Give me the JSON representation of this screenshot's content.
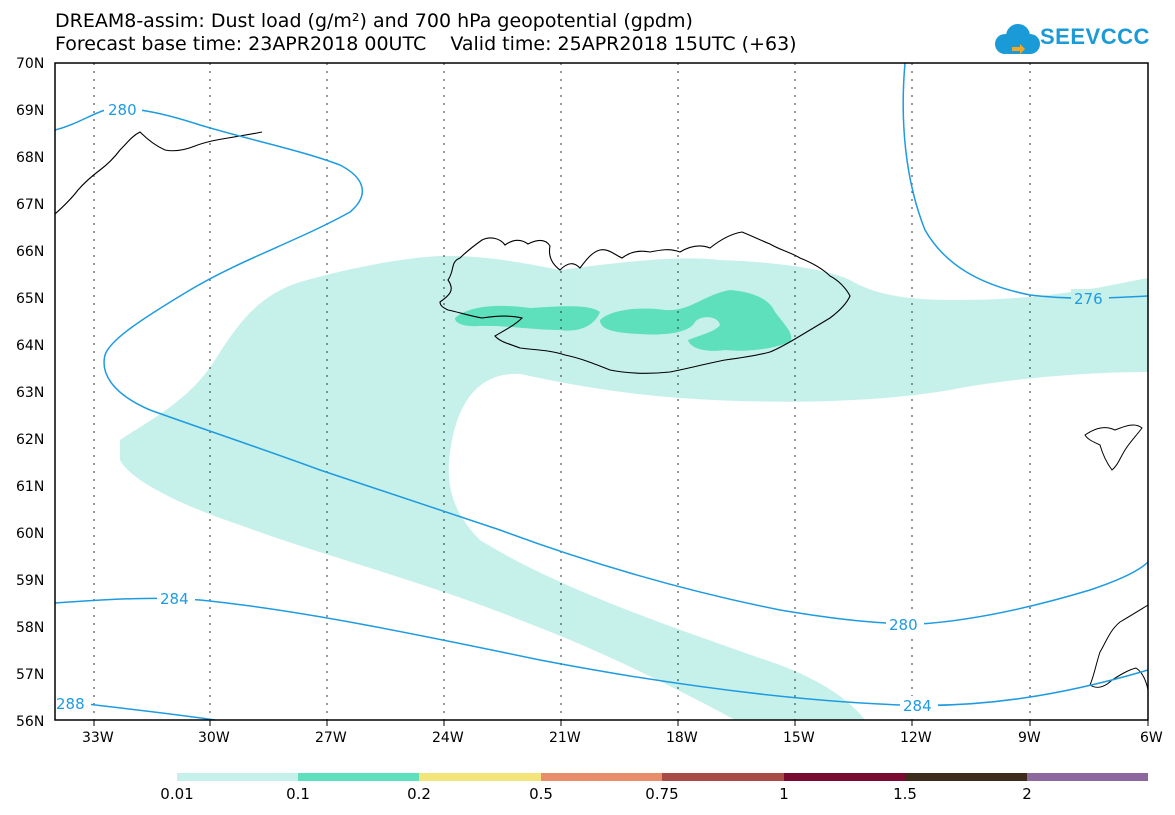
{
  "title": {
    "line1": "DREAM8-assim: Dust load (g/m²) and 700 hPa geopotential (gpdm)",
    "line2": "Forecast base time: 23APR2018 00UTC    Valid time: 25APR2018 15UTC (+63)"
  },
  "logo": {
    "text": "SEEVCCC",
    "icon": "cloud-icon",
    "color": "#1a9ad6"
  },
  "map": {
    "lon_labels": [
      "33W",
      "30W",
      "27W",
      "24W",
      "21W",
      "18W",
      "15W",
      "12W",
      "9W",
      "6W"
    ],
    "lat_labels": [
      "70N",
      "69N",
      "68N",
      "67N",
      "66N",
      "65N",
      "64N",
      "63N",
      "62N",
      "61N",
      "60N",
      "59N",
      "58N",
      "57N",
      "56N"
    ],
    "contour_labels": [
      "280",
      "276",
      "284",
      "280",
      "284",
      "288"
    ],
    "contour_color": "#1e9be0",
    "coast_color": "#000000"
  },
  "colorbar": {
    "labels": [
      "0.01",
      "0.1",
      "0.2",
      "0.5",
      "0.75",
      "1",
      "1.5",
      "2"
    ],
    "colors": [
      "#c6f1eb",
      "#5ee0bd",
      "#f4e57a",
      "#e98c6a",
      "#a84a45",
      "#7b0a32",
      "#3f2b1b",
      "#8d689e"
    ]
  }
}
